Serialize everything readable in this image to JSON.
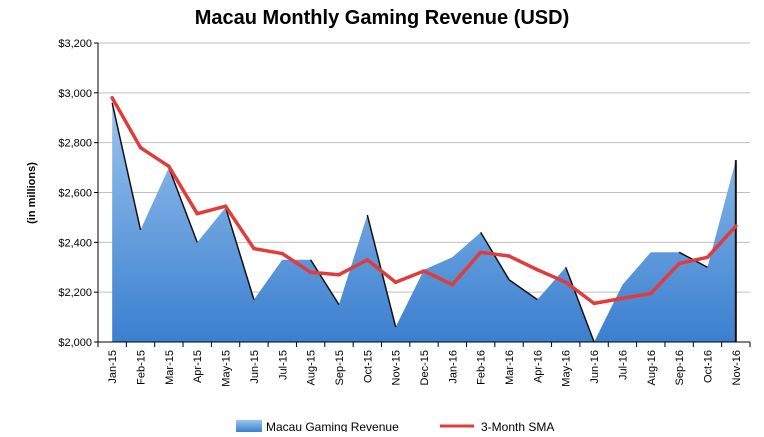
{
  "chart_data": {
    "type": "area",
    "title": "Macau Monthly Gaming Revenue (USD)",
    "ylabel": "(in millions)",
    "xlabel": "",
    "ylim": [
      2000,
      3200
    ],
    "yticks": [
      2000,
      2200,
      2400,
      2600,
      2800,
      3000,
      3200
    ],
    "ytick_labels": [
      "$2,000",
      "$2,200",
      "$2,400",
      "$2,600",
      "$2,800",
      "$3,000",
      "$3,200"
    ],
    "grid": true,
    "legend_position": "bottom",
    "categories": [
      "Jan-15",
      "Feb-15",
      "Mar-15",
      "Apr-15",
      "May-15",
      "Jun-15",
      "Jul-15",
      "Aug-15",
      "Sep-15",
      "Oct-15",
      "Nov-15",
      "Dec-15",
      "Jan-16",
      "Feb-16",
      "Mar-16",
      "Apr-16",
      "May-16",
      "Jun-16",
      "Jul-16",
      "Aug-16",
      "Sep-16",
      "Oct-16",
      "Nov-16"
    ],
    "series": [
      {
        "name": "Macau Gaming Revenue",
        "type": "area",
        "color": "#5b9bd5",
        "values": [
          2960,
          2450,
          2700,
          2400,
          2540,
          2170,
          2330,
          2330,
          2150,
          2510,
          2060,
          2290,
          2340,
          2440,
          2250,
          2170,
          2300,
          1990,
          2230,
          2360,
          2360,
          2300,
          2730
        ]
      },
      {
        "name": "3-Month SMA",
        "type": "line",
        "color": "#e03c3c",
        "values": [
          2980,
          2780,
          2705,
          2515,
          2545,
          2375,
          2355,
          2280,
          2270,
          2330,
          2240,
          2285,
          2230,
          2360,
          2345,
          2290,
          2240,
          2155,
          2175,
          2195,
          2315,
          2340,
          2465
        ]
      }
    ]
  }
}
